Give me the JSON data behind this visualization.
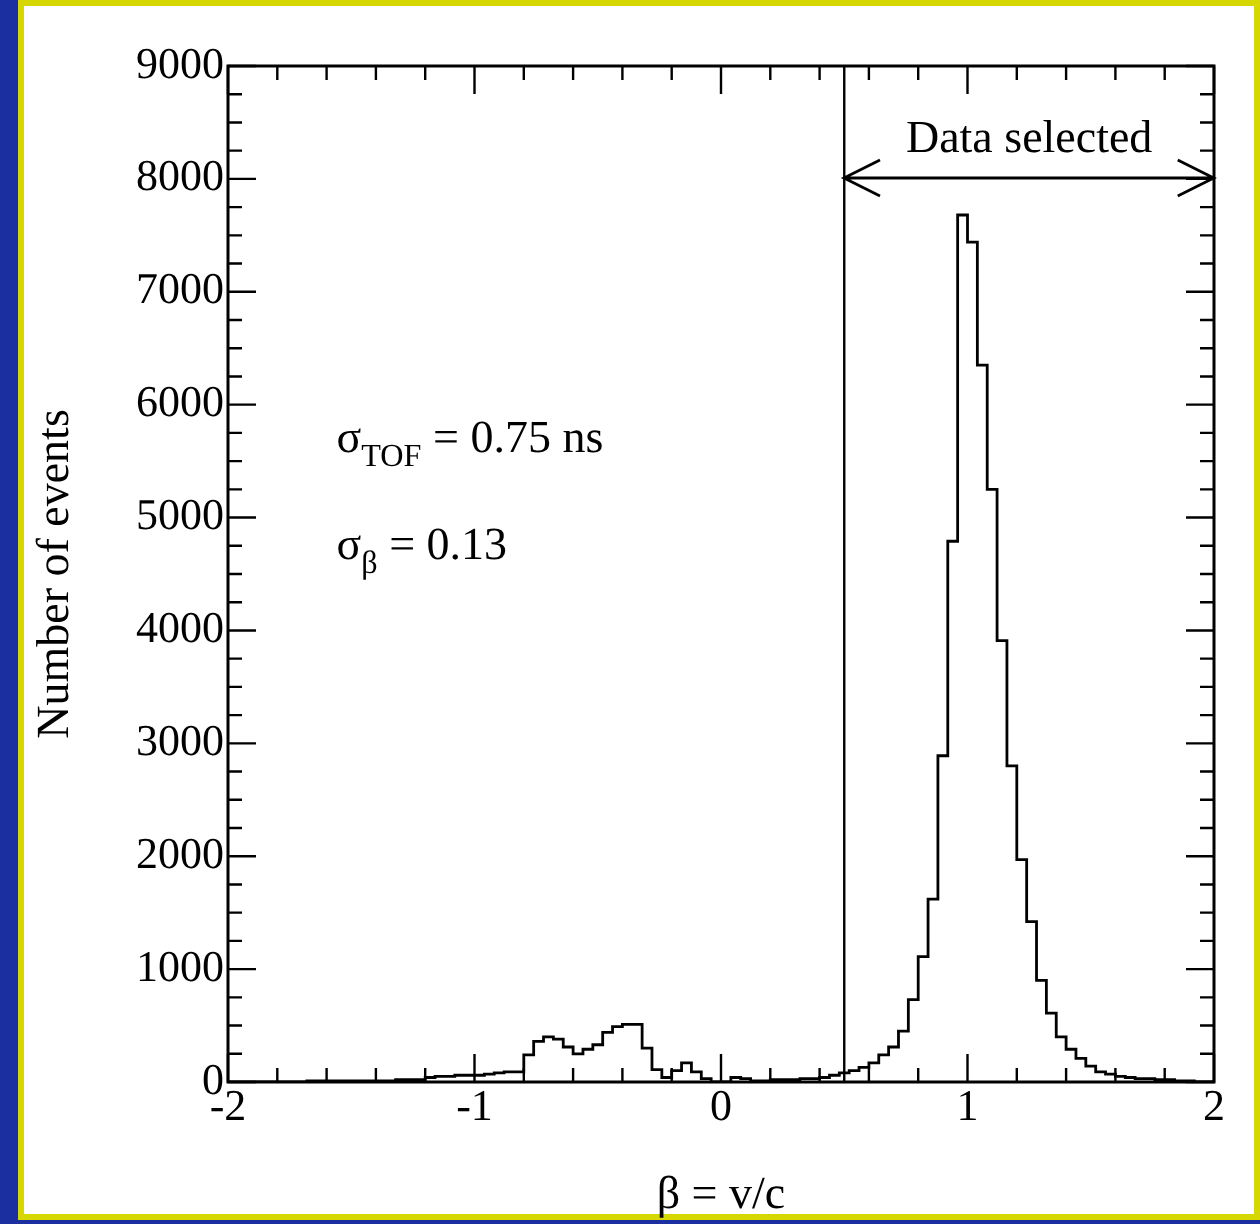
{
  "chart_data": {
    "type": "histogram",
    "xlabel": "β = v/c",
    "ylabel": "Number of events",
    "color": "#000000",
    "bins": [
      -2,
      -1.96,
      -1.92,
      -1.88,
      -1.84,
      -1.8,
      -1.76,
      -1.72,
      -1.68,
      -1.64,
      -1.6,
      -1.56,
      -1.52,
      -1.48,
      -1.44,
      -1.4,
      -1.36,
      -1.32,
      -1.28,
      -1.24,
      -1.2,
      -1.16,
      -1.12,
      -1.08,
      -1.04,
      -1,
      -0.96,
      -0.92,
      -0.88,
      -0.84,
      -0.8,
      -0.76,
      -0.72,
      -0.68,
      -0.64,
      -0.6,
      -0.56,
      -0.52,
      -0.48,
      -0.44,
      -0.4,
      -0.36,
      -0.32,
      -0.28,
      -0.24,
      -0.2,
      -0.16,
      -0.12,
      -0.08,
      -0.04,
      0,
      0.04,
      0.08,
      0.12,
      0.16,
      0.2,
      0.24,
      0.28,
      0.32,
      0.36,
      0.4,
      0.44,
      0.48,
      0.52,
      0.56,
      0.6,
      0.64,
      0.68,
      0.72,
      0.76,
      0.8,
      0.84,
      0.88,
      0.92,
      0.96,
      1,
      1.04,
      1.08,
      1.12,
      1.16,
      1.2,
      1.24,
      1.28,
      1.32,
      1.36,
      1.4,
      1.44,
      1.48,
      1.52,
      1.56,
      1.6,
      1.64,
      1.68,
      1.72,
      1.76,
      1.8,
      1.84,
      1.88,
      1.92,
      1.96,
      2
    ],
    "values": [
      0,
      0,
      0,
      0,
      0,
      0,
      0,
      0,
      10,
      10,
      10,
      10,
      10,
      10,
      10,
      10,
      10,
      20,
      20,
      20,
      40,
      50,
      50,
      60,
      60,
      60,
      70,
      80,
      90,
      90,
      240,
      360,
      400,
      380,
      310,
      250,
      290,
      330,
      440,
      490,
      510,
      510,
      300,
      110,
      40,
      100,
      170,
      90,
      30,
      0,
      0,
      40,
      30,
      10,
      10,
      20,
      20,
      20,
      30,
      30,
      40,
      60,
      80,
      100,
      130,
      170,
      240,
      310,
      450,
      730,
      1110,
      1620,
      2890,
      4790,
      7680,
      7440,
      6350,
      5250,
      3910,
      2800,
      1970,
      1420,
      900,
      610,
      400,
      290,
      210,
      140,
      90,
      70,
      50,
      40,
      30,
      30,
      20,
      20,
      10,
      10,
      0,
      0
    ],
    "xlim": [
      -2,
      2
    ],
    "ylim": [
      0,
      9000
    ],
    "xticks": [
      -2,
      {
        "value": -1.8,
        "label": null
      },
      {
        "value": -1.6,
        "label": null
      },
      {
        "value": -1.4,
        "label": null
      },
      {
        "value": -1.2,
        "label": null
      },
      -1,
      {
        "value": -0.8,
        "label": null
      },
      {
        "value": -0.6,
        "label": null
      },
      {
        "value": -0.4,
        "label": null
      },
      {
        "value": -0.2,
        "label": null
      },
      0,
      {
        "value": 0.2,
        "label": null
      },
      {
        "value": 0.4,
        "label": null
      },
      {
        "value": 0.6,
        "label": null
      },
      {
        "value": 0.8,
        "label": null
      },
      1,
      {
        "value": 1.2,
        "label": null
      },
      {
        "value": 1.4,
        "label": null
      },
      {
        "value": 1.6,
        "label": null
      },
      {
        "value": 1.8,
        "label": null
      },
      2
    ],
    "yticks": [
      0,
      {
        "value": 250,
        "label": null
      },
      {
        "value": 500,
        "label": null
      },
      {
        "value": 750,
        "label": null
      },
      1000,
      {
        "value": 1250,
        "label": null
      },
      {
        "value": 1500,
        "label": null
      },
      {
        "value": 1750,
        "label": null
      },
      2000,
      {
        "value": 2250,
        "label": null
      },
      {
        "value": 2500,
        "label": null
      },
      {
        "value": 2750,
        "label": null
      },
      3000,
      {
        "value": 3250,
        "label": null
      },
      {
        "value": 3500,
        "label": null
      },
      {
        "value": 3750,
        "label": null
      },
      4000,
      {
        "value": 4250,
        "label": null
      },
      {
        "value": 4500,
        "label": null
      },
      {
        "value": 4750,
        "label": null
      },
      5000,
      {
        "value": 5250,
        "label": null
      },
      {
        "value": 5500,
        "label": null
      },
      {
        "value": 5750,
        "label": null
      },
      6000,
      {
        "value": 6250,
        "label": null
      },
      {
        "value": 6500,
        "label": null
      },
      {
        "value": 6750,
        "label": null
      },
      7000,
      {
        "value": 7250,
        "label": null
      },
      {
        "value": 7500,
        "label": null
      },
      {
        "value": 7750,
        "label": null
      },
      8000,
      {
        "value": 8250,
        "label": null
      },
      {
        "value": 8500,
        "label": null
      },
      {
        "value": 8750,
        "label": null
      },
      9000
    ],
    "ref_lines": [
      {
        "axis": "x",
        "value": 0.5,
        "label": "Data selected"
      }
    ],
    "annotations": [
      "σ$_{TOF}$ = 0.75 ns",
      "σ$_{β}$ = 0.13"
    ]
  }
}
